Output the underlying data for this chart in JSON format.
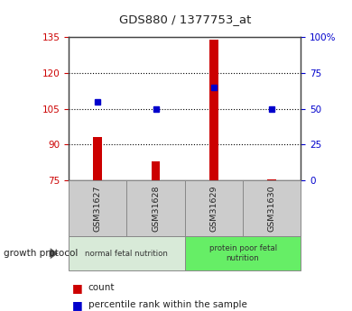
{
  "title": "GDS880 / 1377753_at",
  "samples": [
    "GSM31627",
    "GSM31628",
    "GSM31629",
    "GSM31630"
  ],
  "count_values": [
    93,
    83,
    134,
    75.5
  ],
  "percentile_values": [
    55,
    50,
    65,
    50
  ],
  "ylim_left": [
    75,
    135
  ],
  "ylim_right": [
    0,
    100
  ],
  "yticks_left": [
    75,
    90,
    105,
    120,
    135
  ],
  "yticks_right": [
    0,
    25,
    50,
    75,
    100
  ],
  "bar_color": "#cc0000",
  "marker_color": "#0000cc",
  "groups": [
    {
      "label": "normal fetal nutrition",
      "samples": [
        0,
        1
      ],
      "color": "#d8ead8"
    },
    {
      "label": "protein poor fetal\nnutrition",
      "samples": [
        2,
        3
      ],
      "color": "#66ee66"
    }
  ],
  "group_label": "growth protocol",
  "legend_count_label": "count",
  "legend_percentile_label": "percentile rank within the sample",
  "title_color": "#222222",
  "left_axis_color": "#cc0000",
  "right_axis_color": "#0000cc",
  "sample_box_color": "#cccccc"
}
